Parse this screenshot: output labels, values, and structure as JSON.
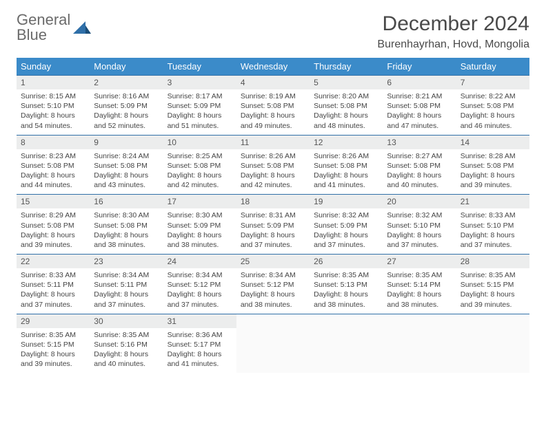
{
  "logo": {
    "line1": "General",
    "line2": "Blue"
  },
  "title": "December 2024",
  "subtitle": "Burenhayrhan, Hovd, Mongolia",
  "colors": {
    "header_bg": "#3b8bc9",
    "header_text": "#ffffff",
    "daynum_bg": "#eceded",
    "border": "#2f6fa8",
    "logo_gray": "#6a6a6a",
    "logo_blue": "#2f6fa8"
  },
  "weekdays": [
    "Sunday",
    "Monday",
    "Tuesday",
    "Wednesday",
    "Thursday",
    "Friday",
    "Saturday"
  ],
  "weeks": [
    [
      {
        "day": "1",
        "sunrise": "8:15 AM",
        "sunset": "5:10 PM",
        "daylight": "8 hours and 54 minutes."
      },
      {
        "day": "2",
        "sunrise": "8:16 AM",
        "sunset": "5:09 PM",
        "daylight": "8 hours and 52 minutes."
      },
      {
        "day": "3",
        "sunrise": "8:17 AM",
        "sunset": "5:09 PM",
        "daylight": "8 hours and 51 minutes."
      },
      {
        "day": "4",
        "sunrise": "8:19 AM",
        "sunset": "5:08 PM",
        "daylight": "8 hours and 49 minutes."
      },
      {
        "day": "5",
        "sunrise": "8:20 AM",
        "sunset": "5:08 PM",
        "daylight": "8 hours and 48 minutes."
      },
      {
        "day": "6",
        "sunrise": "8:21 AM",
        "sunset": "5:08 PM",
        "daylight": "8 hours and 47 minutes."
      },
      {
        "day": "7",
        "sunrise": "8:22 AM",
        "sunset": "5:08 PM",
        "daylight": "8 hours and 46 minutes."
      }
    ],
    [
      {
        "day": "8",
        "sunrise": "8:23 AM",
        "sunset": "5:08 PM",
        "daylight": "8 hours and 44 minutes."
      },
      {
        "day": "9",
        "sunrise": "8:24 AM",
        "sunset": "5:08 PM",
        "daylight": "8 hours and 43 minutes."
      },
      {
        "day": "10",
        "sunrise": "8:25 AM",
        "sunset": "5:08 PM",
        "daylight": "8 hours and 42 minutes."
      },
      {
        "day": "11",
        "sunrise": "8:26 AM",
        "sunset": "5:08 PM",
        "daylight": "8 hours and 42 minutes."
      },
      {
        "day": "12",
        "sunrise": "8:26 AM",
        "sunset": "5:08 PM",
        "daylight": "8 hours and 41 minutes."
      },
      {
        "day": "13",
        "sunrise": "8:27 AM",
        "sunset": "5:08 PM",
        "daylight": "8 hours and 40 minutes."
      },
      {
        "day": "14",
        "sunrise": "8:28 AM",
        "sunset": "5:08 PM",
        "daylight": "8 hours and 39 minutes."
      }
    ],
    [
      {
        "day": "15",
        "sunrise": "8:29 AM",
        "sunset": "5:08 PM",
        "daylight": "8 hours and 39 minutes."
      },
      {
        "day": "16",
        "sunrise": "8:30 AM",
        "sunset": "5:08 PM",
        "daylight": "8 hours and 38 minutes."
      },
      {
        "day": "17",
        "sunrise": "8:30 AM",
        "sunset": "5:09 PM",
        "daylight": "8 hours and 38 minutes."
      },
      {
        "day": "18",
        "sunrise": "8:31 AM",
        "sunset": "5:09 PM",
        "daylight": "8 hours and 37 minutes."
      },
      {
        "day": "19",
        "sunrise": "8:32 AM",
        "sunset": "5:09 PM",
        "daylight": "8 hours and 37 minutes."
      },
      {
        "day": "20",
        "sunrise": "8:32 AM",
        "sunset": "5:10 PM",
        "daylight": "8 hours and 37 minutes."
      },
      {
        "day": "21",
        "sunrise": "8:33 AM",
        "sunset": "5:10 PM",
        "daylight": "8 hours and 37 minutes."
      }
    ],
    [
      {
        "day": "22",
        "sunrise": "8:33 AM",
        "sunset": "5:11 PM",
        "daylight": "8 hours and 37 minutes."
      },
      {
        "day": "23",
        "sunrise": "8:34 AM",
        "sunset": "5:11 PM",
        "daylight": "8 hours and 37 minutes."
      },
      {
        "day": "24",
        "sunrise": "8:34 AM",
        "sunset": "5:12 PM",
        "daylight": "8 hours and 37 minutes."
      },
      {
        "day": "25",
        "sunrise": "8:34 AM",
        "sunset": "5:12 PM",
        "daylight": "8 hours and 38 minutes."
      },
      {
        "day": "26",
        "sunrise": "8:35 AM",
        "sunset": "5:13 PM",
        "daylight": "8 hours and 38 minutes."
      },
      {
        "day": "27",
        "sunrise": "8:35 AM",
        "sunset": "5:14 PM",
        "daylight": "8 hours and 38 minutes."
      },
      {
        "day": "28",
        "sunrise": "8:35 AM",
        "sunset": "5:15 PM",
        "daylight": "8 hours and 39 minutes."
      }
    ],
    [
      {
        "day": "29",
        "sunrise": "8:35 AM",
        "sunset": "5:15 PM",
        "daylight": "8 hours and 39 minutes."
      },
      {
        "day": "30",
        "sunrise": "8:35 AM",
        "sunset": "5:16 PM",
        "daylight": "8 hours and 40 minutes."
      },
      {
        "day": "31",
        "sunrise": "8:36 AM",
        "sunset": "5:17 PM",
        "daylight": "8 hours and 41 minutes."
      },
      null,
      null,
      null,
      null
    ]
  ],
  "labels": {
    "sunrise": "Sunrise:",
    "sunset": "Sunset:",
    "daylight": "Daylight:"
  }
}
